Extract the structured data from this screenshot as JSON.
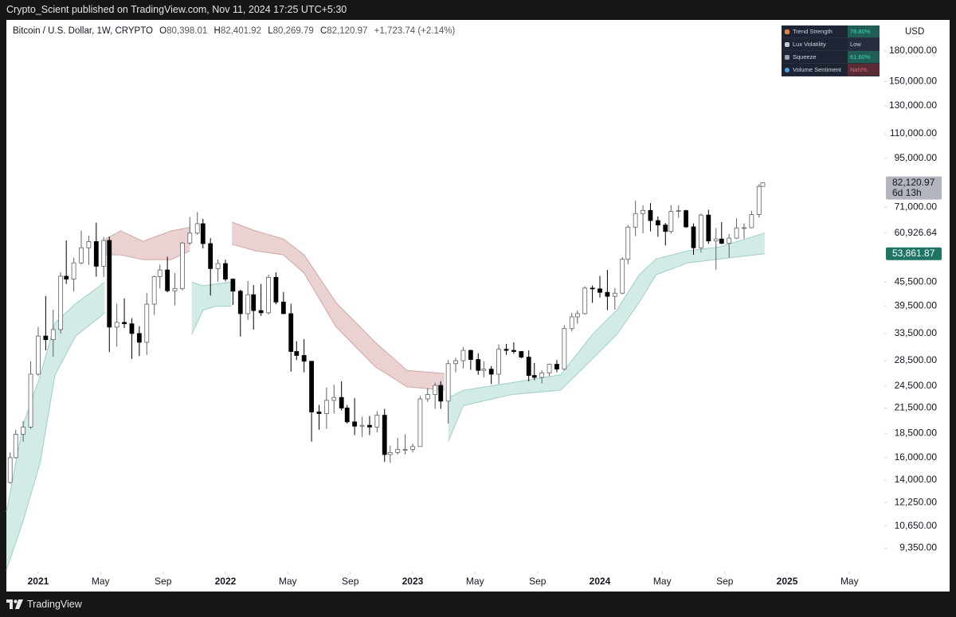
{
  "header": {
    "text": "Crypto_Scient published on TradingView.com, Nov 11, 2024 17:25 UTC+5:30"
  },
  "legend": {
    "symbol": "Bitcoin / U.S. Dollar, 1W, CRYPTO",
    "items": [
      {
        "key": "O",
        "value": "80,398.01"
      },
      {
        "key": "H",
        "value": "82,401.92"
      },
      {
        "key": "L",
        "value": "80,269.79"
      },
      {
        "key": "C",
        "value": "82,120.97"
      }
    ],
    "change": "+1,723.74 (+2.14%)"
  },
  "indicator_table": {
    "rows": [
      {
        "label": "Trend Strength",
        "value": "78.80%"
      },
      {
        "label": "Lux Volatility",
        "value": "Low"
      },
      {
        "label": "Squeeze",
        "value": "61.60%"
      },
      {
        "label": "Volume Sentiment",
        "value": "NaN%"
      }
    ]
  },
  "footer": {
    "brand": "TradingView"
  },
  "chart_data": {
    "type": "candlestick",
    "currency": "USD",
    "log_scale": true,
    "grid": false,
    "up_color": "#ffffff",
    "down_color": "#000000",
    "border_color": "#5d606b",
    "xlim": [
      2020.83,
      2025.519
    ],
    "xticks": [
      2021,
      {
        "value": 2021.333,
        "label": "May"
      },
      {
        "value": 2021.667,
        "label": "Sep"
      },
      2022,
      {
        "value": 2022.333,
        "label": "May"
      },
      {
        "value": 2022.667,
        "label": "Sep"
      },
      2023,
      {
        "value": 2023.333,
        "label": "May"
      },
      {
        "value": 2023.667,
        "label": "Sep"
      },
      2024,
      {
        "value": 2024.333,
        "label": "May"
      },
      {
        "value": 2024.667,
        "label": "Sep"
      },
      2025,
      {
        "value": 2025.333,
        "label": "May"
      }
    ],
    "ylim": [
      8120,
      216600
    ],
    "yticks": [
      {
        "value": 180000,
        "label": "180,000.00"
      },
      {
        "value": 150000,
        "label": "150,000.00"
      },
      {
        "value": 130000,
        "label": "130,000.00"
      },
      {
        "value": 110000,
        "label": "110,000.00"
      },
      {
        "value": 95000,
        "label": "95,000.00"
      },
      {
        "value": 71000,
        "label": "71,000.00"
      },
      {
        "value": 60926.64,
        "label": "60,926.64"
      },
      {
        "value": 45500,
        "label": "45,500.00"
      },
      {
        "value": 39500,
        "label": "39,500.00"
      },
      {
        "value": 33500,
        "label": "33,500.00"
      },
      {
        "value": 28500,
        "label": "28,500.00"
      },
      {
        "value": 24500,
        "label": "24,500.00"
      },
      {
        "value": 21500,
        "label": "21,500.00"
      },
      {
        "value": 18500,
        "label": "18,500.00"
      },
      {
        "value": 16000,
        "label": "16,000.00"
      },
      {
        "value": 14000,
        "label": "14,000.00"
      },
      {
        "value": 12250,
        "label": "12,250.00"
      },
      {
        "value": 10650,
        "label": "10,650.00"
      },
      {
        "value": 9350,
        "label": "9,350.00"
      }
    ],
    "price_tags": [
      {
        "value": 82120.97,
        "label": "82,120.97",
        "sub": "6d 13h",
        "color": "#b2b5be",
        "text_color": "#131722"
      },
      {
        "value": 53861.87,
        "label": "53,861.87",
        "color": "#1e7566",
        "text_color": "#ffffff"
      }
    ],
    "bands": [
      {
        "color": "#d3ebe6",
        "line_color": "#9fcfc5",
        "x": [
          2020.83,
          2020.92,
          2021.01,
          2021.09,
          2021.2,
          2021.33,
          2021.355
        ],
        "upper": [
          11600,
          19500,
          26000,
          35700,
          40000,
          44500,
          45500
        ],
        "lower": [
          8200,
          11000,
          15500,
          26200,
          33000,
          37000,
          38000
        ]
      },
      {
        "color": "#ead2d2",
        "line_color": "#d4a5a5",
        "x": [
          2021.36,
          2021.44,
          2021.56,
          2021.71,
          2021.81
        ],
        "upper": [
          58800,
          61700,
          58000,
          61700,
          63000
        ],
        "lower": [
          53500,
          53500,
          52000,
          52000,
          54800
        ]
      },
      {
        "color": "#d3ebe6",
        "line_color": "#9fcfc5",
        "x": [
          2021.82,
          2021.88,
          2021.95,
          2022.03
        ],
        "upper": [
          45500,
          44500,
          45000,
          45500
        ],
        "lower": [
          33300,
          38500,
          39400,
          39400
        ]
      },
      {
        "color": "#ead2d2",
        "line_color": "#d4a5a5",
        "x": [
          2022.035,
          2022.16,
          2022.31,
          2022.42,
          2022.59,
          2022.8,
          2022.97,
          2023.17
        ],
        "upper": [
          65000,
          61700,
          58800,
          53500,
          40300,
          31800,
          26900,
          26400
        ],
        "lower": [
          57000,
          54800,
          53500,
          48000,
          34900,
          27500,
          24400,
          23900
        ]
      },
      {
        "color": "#d3ebe6",
        "line_color": "#9fcfc5",
        "x": [
          2023.19,
          2023.27,
          2023.53,
          2023.79,
          2023.96,
          2024.09,
          2024.21,
          2024.3,
          2024.47,
          2024.64,
          2024.88
        ],
        "upper": [
          22800,
          23900,
          25000,
          26200,
          33300,
          38500,
          47500,
          52200,
          54800,
          56100,
          60926.64
        ],
        "lower": [
          17600,
          21800,
          23300,
          23900,
          28800,
          33300,
          40300,
          47500,
          51000,
          52200,
          53861.87
        ]
      }
    ],
    "candles": {
      "x": [
        2020.85,
        2020.88,
        2020.92,
        2020.96,
        2021.0,
        2021.04,
        2021.08,
        2021.12,
        2021.15,
        2021.19,
        2021.23,
        2021.27,
        2021.31,
        2021.35,
        2021.38,
        2021.42,
        2021.46,
        2021.5,
        2021.54,
        2021.58,
        2021.62,
        2021.65,
        2021.69,
        2021.73,
        2021.77,
        2021.81,
        2021.85,
        2021.88,
        2021.92,
        2021.96,
        2022.0,
        2022.04,
        2022.08,
        2022.12,
        2022.15,
        2022.19,
        2022.23,
        2022.27,
        2022.31,
        2022.35,
        2022.38,
        2022.42,
        2022.46,
        2022.5,
        2022.54,
        2022.58,
        2022.62,
        2022.65,
        2022.69,
        2022.73,
        2022.77,
        2022.81,
        2022.85,
        2022.88,
        2022.92,
        2022.96,
        2023.0,
        2023.04,
        2023.08,
        2023.12,
        2023.15,
        2023.19,
        2023.23,
        2023.27,
        2023.31,
        2023.35,
        2023.38,
        2023.42,
        2023.46,
        2023.5,
        2023.54,
        2023.58,
        2023.62,
        2023.65,
        2023.69,
        2023.73,
        2023.77,
        2023.81,
        2023.85,
        2023.88,
        2023.92,
        2023.96,
        2024.0,
        2024.04,
        2024.08,
        2024.12,
        2024.15,
        2024.19,
        2024.23,
        2024.27,
        2024.31,
        2024.35,
        2024.38,
        2024.42,
        2024.46,
        2024.5,
        2024.54,
        2024.58,
        2024.62,
        2024.65,
        2024.69,
        2024.73,
        2024.77,
        2024.81,
        2024.85,
        2024.87
      ],
      "open": [
        13800,
        16000,
        18400,
        19200,
        26300,
        33000,
        32300,
        34300,
        47100,
        46300,
        51000,
        55800,
        57900,
        50000,
        58300,
        34800,
        35800,
        35500,
        33500,
        31800,
        39900,
        47000,
        48900,
        43200,
        43800,
        57400,
        60900,
        64400,
        57200,
        49300,
        50800,
        46300,
        43100,
        37700,
        42200,
        38400,
        37900,
        46800,
        40400,
        37700,
        30100,
        29400,
        28400,
        21000,
        20800,
        22500,
        22900,
        21500,
        19800,
        19300,
        19400,
        19200,
        20600,
        16300,
        16500,
        16800,
        16800,
        17100,
        22700,
        23300,
        24600,
        22400,
        28000,
        28500,
        30300,
        28700,
        26900,
        27100,
        26300,
        30500,
        30300,
        30100,
        29100,
        26100,
        25800,
        26500,
        27900,
        27100,
        34500,
        37000,
        37700,
        43900,
        43700,
        42800,
        41800,
        42600,
        52100,
        63100,
        68400,
        69700,
        65600,
        63900,
        61500,
        69300,
        69600,
        63200,
        55800,
        67800,
        58100,
        58800,
        57300,
        59100,
        62800,
        62900,
        68000,
        80398.01
      ],
      "high": [
        16500,
        18900,
        19900,
        28400,
        34800,
        41900,
        38600,
        48200,
        58300,
        52600,
        61800,
        60000,
        64800,
        59500,
        59600,
        40000,
        41300,
        36700,
        35000,
        42600,
        47300,
        50500,
        52900,
        48000,
        57800,
        67000,
        69000,
        66300,
        59100,
        52100,
        52000,
        46500,
        43500,
        45800,
        44700,
        45000,
        47500,
        48200,
        42900,
        40000,
        32000,
        32400,
        28400,
        21900,
        24300,
        24700,
        25200,
        21900,
        22800,
        20400,
        20500,
        21100,
        21400,
        17200,
        18000,
        18400,
        17400,
        23100,
        24200,
        25000,
        25200,
        28600,
        29000,
        30900,
        30400,
        29800,
        28400,
        27600,
        31400,
        31500,
        31800,
        30100,
        30300,
        28100,
        26900,
        28000,
        28600,
        35200,
        37900,
        38400,
        44400,
        44600,
        47200,
        48900,
        43900,
        52800,
        63900,
        73800,
        71800,
        72800,
        67200,
        64700,
        71900,
        71900,
        70000,
        64500,
        68400,
        70000,
        62700,
        65000,
        60600,
        66500,
        64500,
        69500,
        81500,
        82401.92
      ],
      "low": [
        13700,
        15900,
        17600,
        19000,
        26000,
        30300,
        29200,
        33500,
        45000,
        43000,
        50500,
        50400,
        47000,
        46900,
        30000,
        31000,
        34600,
        28800,
        29300,
        29500,
        37400,
        43800,
        42800,
        39600,
        43300,
        56800,
        60300,
        55600,
        42000,
        45600,
        45700,
        39700,
        32900,
        36300,
        34300,
        37200,
        37500,
        39900,
        37600,
        26700,
        28600,
        26600,
        17600,
        18900,
        19000,
        20800,
        21200,
        19600,
        18300,
        18100,
        18300,
        18600,
        15600,
        15500,
        16300,
        16300,
        16500,
        17100,
        22300,
        21400,
        21400,
        19600,
        26600,
        27200,
        27000,
        26200,
        25800,
        24800,
        24800,
        29500,
        29700,
        28900,
        25200,
        25400,
        24900,
        26000,
        26600,
        26900,
        33900,
        35500,
        37500,
        40200,
        41500,
        38500,
        38600,
        42300,
        50600,
        59800,
        60800,
        61500,
        59600,
        56600,
        60700,
        66700,
        62800,
        53500,
        54300,
        57100,
        49000,
        57000,
        52600,
        58800,
        58900,
        62700,
        66800,
        80269.79
      ],
      "close": [
        16000,
        18400,
        19200,
        26300,
        33000,
        32300,
        34300,
        47100,
        46300,
        51000,
        55800,
        57900,
        50000,
        58300,
        34800,
        35800,
        35500,
        33500,
        31800,
        39900,
        47000,
        48900,
        43200,
        43800,
        57400,
        60900,
        64400,
        57200,
        49300,
        50800,
        46300,
        43100,
        37700,
        42200,
        38400,
        37900,
        46800,
        40400,
        37700,
        30100,
        29400,
        28400,
        21000,
        20800,
        22500,
        22900,
        21500,
        19800,
        19300,
        19400,
        19200,
        20600,
        16300,
        16500,
        16800,
        16800,
        17100,
        22700,
        23300,
        24600,
        22400,
        28000,
        28500,
        30300,
        28700,
        26900,
        27100,
        26300,
        30500,
        30300,
        30100,
        29100,
        26100,
        25800,
        26500,
        27900,
        27100,
        34500,
        37000,
        37700,
        43900,
        43700,
        42800,
        41800,
        42600,
        52100,
        63100,
        68400,
        69700,
        65600,
        63900,
        61500,
        69300,
        69600,
        63200,
        55800,
        67800,
        58100,
        58800,
        57300,
        59100,
        62800,
        62900,
        68000,
        80400,
        82120.97
      ]
    }
  }
}
